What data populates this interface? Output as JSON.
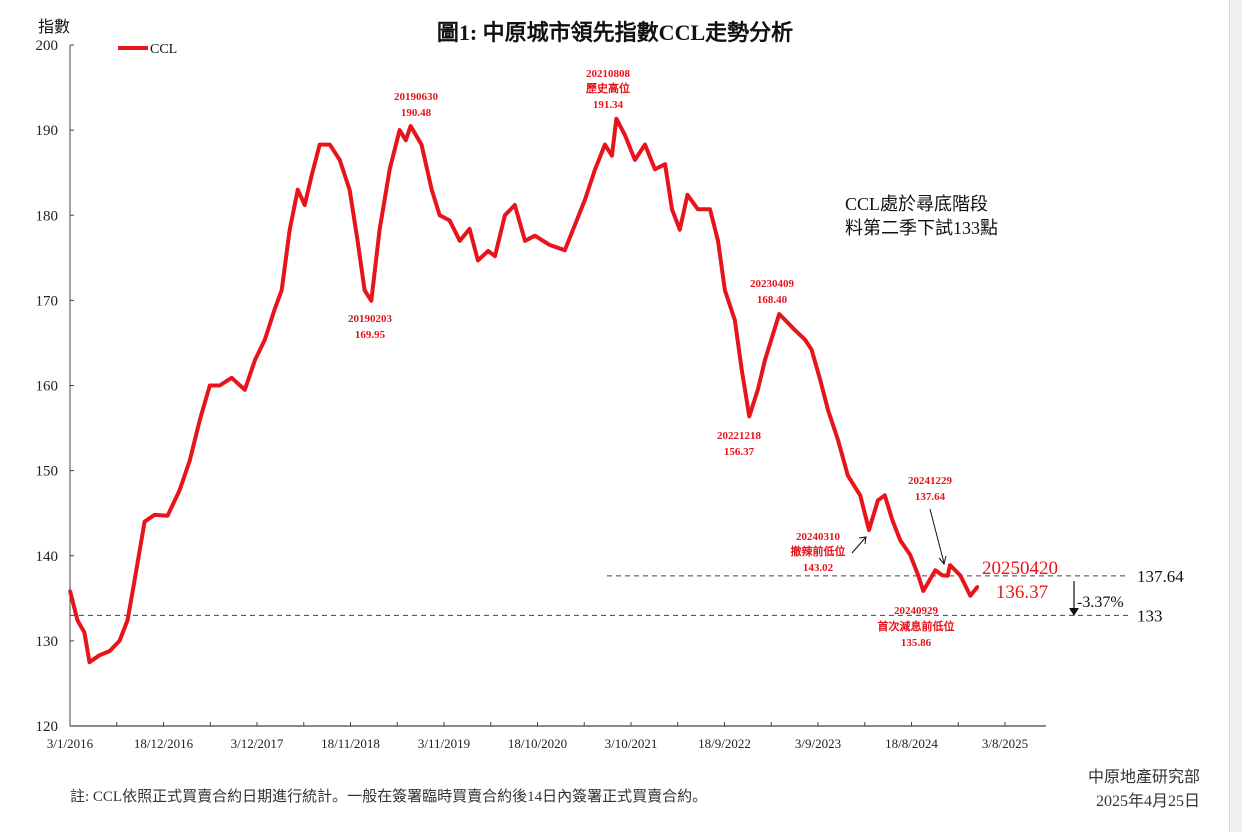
{
  "chart_data": {
    "type": "line",
    "title": "圖1: 中原城市領先指數CCL走勢分析",
    "ylabel": "指數",
    "xlabel": "",
    "ylim": [
      120,
      200
    ],
    "yticks": [
      "200",
      "190",
      "180",
      "170",
      "160",
      "150",
      "140",
      "130",
      "120"
    ],
    "xlim": [
      "2016-01-03",
      "2026-01-01"
    ],
    "xticks": [
      "3/1/2016",
      "18/12/2016",
      "3/12/2017",
      "18/11/2018",
      "3/11/2019",
      "18/10/2020",
      "3/10/2021",
      "18/9/2022",
      "3/9/2023",
      "18/8/2024",
      "3/8/2025"
    ],
    "grid": false,
    "legend": {
      "position": "top-left",
      "entries": [
        "CCL"
      ]
    },
    "series": [
      {
        "name": "CCL",
        "color": "#e8141b",
        "points": [
          [
            "2016-01-03",
            135.9
          ],
          [
            "2016-01-31",
            132.4
          ],
          [
            "2016-02-26",
            131.0
          ],
          [
            "2016-03-16",
            127.5
          ],
          [
            "2016-04-22",
            128.3
          ],
          [
            "2016-05-30",
            128.8
          ],
          [
            "2016-07-06",
            130.0
          ],
          [
            "2016-08-05",
            132.4
          ],
          [
            "2016-08-31",
            137.0
          ],
          [
            "2016-10-08",
            144.0
          ],
          [
            "2016-11-14",
            144.8
          ],
          [
            "2017-01-02",
            144.7
          ],
          [
            "2017-02-16",
            147.7
          ],
          [
            "2017-03-26",
            151.2
          ],
          [
            "2017-05-02",
            155.9
          ],
          [
            "2017-06-09",
            160.0
          ],
          [
            "2017-07-16",
            160.0
          ],
          [
            "2017-08-30",
            160.9
          ],
          [
            "2017-10-18",
            159.5
          ],
          [
            "2017-11-25",
            163.0
          ],
          [
            "2018-01-01",
            165.4
          ],
          [
            "2018-02-07",
            169.0
          ],
          [
            "2018-03-05",
            171.2
          ],
          [
            "2018-04-04",
            178.3
          ],
          [
            "2018-05-04",
            183.0
          ],
          [
            "2018-05-30",
            181.2
          ],
          [
            "2018-06-25",
            184.7
          ],
          [
            "2018-07-25",
            188.3
          ],
          [
            "2018-09-01",
            188.3
          ],
          [
            "2018-10-08",
            186.5
          ],
          [
            "2018-11-14",
            183.0
          ],
          [
            "2018-12-14",
            177.0
          ],
          [
            "2019-01-09",
            171.2
          ],
          [
            "2019-02-03",
            169.95
          ],
          [
            "2019-03-06",
            178.3
          ],
          [
            "2019-04-13",
            185.4
          ],
          [
            "2019-05-20",
            190.0
          ],
          [
            "2019-06-12",
            188.8
          ],
          [
            "2019-06-30",
            190.48
          ],
          [
            "2019-08-10",
            188.3
          ],
          [
            "2019-09-17",
            183.0
          ],
          [
            "2019-10-17",
            180.0
          ],
          [
            "2019-11-23",
            179.4
          ],
          [
            "2019-12-31",
            177.0
          ],
          [
            "2020-02-06",
            178.4
          ],
          [
            "2020-03-08",
            174.7
          ],
          [
            "2020-04-15",
            175.8
          ],
          [
            "2020-05-11",
            175.2
          ],
          [
            "2020-06-17",
            180.0
          ],
          [
            "2020-07-24",
            181.2
          ],
          [
            "2020-08-31",
            177.0
          ],
          [
            "2020-10-07",
            177.6
          ],
          [
            "2020-12-02",
            176.5
          ],
          [
            "2021-01-27",
            175.9
          ],
          [
            "2021-03-05",
            178.8
          ],
          [
            "2021-04-12",
            181.8
          ],
          [
            "2021-05-19",
            185.3
          ],
          [
            "2021-06-26",
            188.3
          ],
          [
            "2021-07-22",
            187.0
          ],
          [
            "2021-08-08",
            191.34
          ],
          [
            "2021-09-09",
            189.4
          ],
          [
            "2021-10-16",
            186.5
          ],
          [
            "2021-11-23",
            188.3
          ],
          [
            "2021-12-30",
            185.4
          ],
          [
            "2022-02-06",
            186.0
          ],
          [
            "2022-03-04",
            180.7
          ],
          [
            "2022-04-02",
            178.3
          ],
          [
            "2022-05-01",
            182.4
          ],
          [
            "2022-06-09",
            180.7
          ],
          [
            "2022-07-24",
            180.7
          ],
          [
            "2022-08-23",
            177.0
          ],
          [
            "2022-09-18",
            171.2
          ],
          [
            "2022-10-25",
            167.7
          ],
          [
            "2022-11-20",
            161.8
          ],
          [
            "2022-12-18",
            156.37
          ],
          [
            "2023-01-19",
            159.5
          ],
          [
            "2023-02-15",
            163.0
          ],
          [
            "2023-04-09",
            168.4
          ],
          [
            "2023-05-01",
            167.7
          ],
          [
            "2023-06-07",
            166.5
          ],
          [
            "2023-07-14",
            165.4
          ],
          [
            "2023-08-08",
            164.2
          ],
          [
            "2023-09-09",
            160.7
          ],
          [
            "2023-10-09",
            157.1
          ],
          [
            "2023-11-15",
            153.6
          ],
          [
            "2023-12-22",
            149.4
          ],
          [
            "2024-02-06",
            147.1
          ],
          [
            "2024-03-10",
            143.02
          ],
          [
            "2024-04-12",
            146.5
          ],
          [
            "2024-05-08",
            147.1
          ],
          [
            "2024-06-05",
            144.2
          ],
          [
            "2024-07-05",
            141.8
          ],
          [
            "2024-08-11",
            140.1
          ],
          [
            "2024-09-10",
            137.7
          ],
          [
            "2024-09-29",
            135.86
          ],
          [
            "2024-11-13",
            138.3
          ],
          [
            "2024-12-09",
            137.7
          ],
          [
            "2024-12-29",
            137.64
          ],
          [
            "2025-01-07",
            138.9
          ],
          [
            "2025-02-14",
            137.7
          ],
          [
            "2025-03-24",
            135.3
          ],
          [
            "2025-04-20",
            136.37
          ]
        ]
      }
    ],
    "reference_lines": [
      {
        "value": 137.64,
        "label": "137.64"
      },
      {
        "value": 133,
        "label": "133"
      }
    ],
    "annotations": {
      "a2019low": [
        "20190203",
        "169.95"
      ],
      "a2019high": [
        "20190630",
        "190.48"
      ],
      "a2021high": [
        "20210808",
        "歷史高位",
        "191.34"
      ],
      "a2022low": [
        "20221218",
        "156.37"
      ],
      "a2023high": [
        "20230409",
        "168.40"
      ],
      "a2024mar": [
        "20240310",
        "撤辣前低位",
        "143.02"
      ],
      "a2024dec": [
        "20241229",
        "137.64"
      ],
      "a2024sep": [
        "20240929",
        "首次減息前低位",
        "135.86"
      ],
      "latest": [
        "20250420",
        "136.37"
      ],
      "change": "-3.37%",
      "outlook": [
        "CCL處於尋底階段",
        "料第二季下試133點"
      ]
    }
  },
  "footer": {
    "note": "註: CCL依照正式買賣合約日期進行統計。一般在簽署臨時買賣合約後14日內簽署正式買賣合約。",
    "source": "中原地產研究部",
    "date": "2025年4月25日"
  }
}
